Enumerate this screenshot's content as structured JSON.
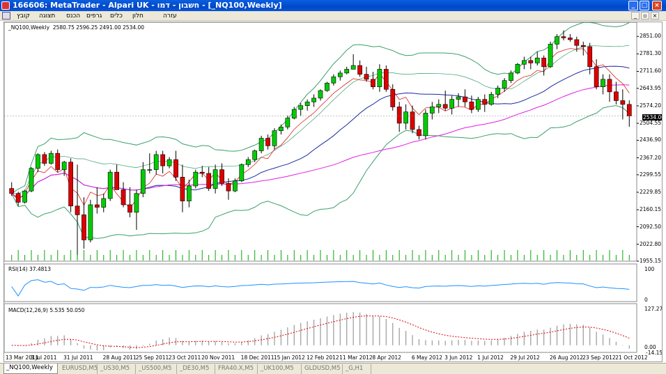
{
  "window": {
    "title": "166606: MetaTrader - Alpari UK - חשבון - דמו - [_NQ100,Weekly]"
  },
  "menu": [
    "קובץ",
    "תצוגה",
    "הכנס",
    "גרפים",
    "כלים",
    "חלון",
    "עזרה"
  ],
  "chart": {
    "info": "_NQ100,Weekly",
    "ohlc": "2580.75 2596.25 2491.00 2534.00",
    "current_price": "2534.00",
    "price_ticks": [
      "2851.00",
      "2781.30",
      "2711.60",
      "2643.95",
      "2574.20",
      "2504.55",
      "2436.90",
      "2367.20",
      "2299.55",
      "2229.85",
      "2160.15",
      "2092.50",
      "2022.80",
      "1955.15"
    ],
    "date_labels": [
      "13 Mar 2011",
      "3 Jul 2011",
      "31 Jul 2011",
      "28 Aug 2011",
      "25 Sep 2011",
      "23 Oct 2011",
      "20 Nov 2011",
      "18 Dec 2011",
      "15 Jan 2012",
      "12 Feb 2012",
      "11 Mar 2012",
      "8 Apr 2012",
      "6 May 2012",
      "3 Jun 2012",
      "1 Jul 2012",
      "29 Jul 2012",
      "26 Aug 2012",
      "23 Sep 2012",
      "21 Oct 2012"
    ],
    "rsi": {
      "label": "RSI(14) 37.4813",
      "scale_top": "100",
      "scale_bottom": "0"
    },
    "macd": {
      "label": "MACD(12,26,9) 5.535 50.050",
      "scale_top": "127.275",
      "scale_bottom": "0.00",
      "scale_neg": "-14.156"
    }
  },
  "chart_data": {
    "type": "candlestick",
    "bullish_color": "#00cc00",
    "bearish_color": "#dd0000",
    "candles": [
      [
        2245,
        2270,
        2215,
        2225
      ],
      [
        2225,
        2232,
        2175,
        2190
      ],
      [
        2190,
        2240,
        2185,
        2235
      ],
      [
        2235,
        2330,
        2230,
        2325
      ],
      [
        2325,
        2385,
        2310,
        2380
      ],
      [
        2380,
        2390,
        2335,
        2345
      ],
      [
        2345,
        2395,
        2340,
        2385
      ],
      [
        2385,
        2400,
        2310,
        2320
      ],
      [
        2320,
        2355,
        2295,
        2350
      ],
      [
        2350,
        2365,
        2150,
        2175
      ],
      [
        2175,
        2340,
        1960,
        2140
      ],
      [
        2140,
        2210,
        2005,
        2040
      ],
      [
        2040,
        2200,
        2030,
        2180
      ],
      [
        2180,
        2250,
        2145,
        2170
      ],
      [
        2170,
        2225,
        2150,
        2205
      ],
      [
        2205,
        2320,
        2195,
        2310
      ],
      [
        2310,
        2340,
        2240,
        2240
      ],
      [
        2240,
        2270,
        2170,
        2180
      ],
      [
        2180,
        2250,
        2130,
        2150
      ],
      [
        2150,
        2240,
        2080,
        2225
      ],
      [
        2225,
        2350,
        2210,
        2320
      ],
      [
        2320,
        2385,
        2305,
        2320
      ],
      [
        2320,
        2395,
        2300,
        2380
      ],
      [
        2380,
        2395,
        2305,
        2335
      ],
      [
        2335,
        2370,
        2325,
        2360
      ],
      [
        2360,
        2395,
        2275,
        2290
      ],
      [
        2290,
        2340,
        2150,
        2195
      ],
      [
        2195,
        2280,
        2170,
        2255
      ],
      [
        2255,
        2320,
        2245,
        2310
      ],
      [
        2310,
        2335,
        2290,
        2305
      ],
      [
        2305,
        2330,
        2235,
        2245
      ],
      [
        2245,
        2340,
        2225,
        2320
      ],
      [
        2320,
        2345,
        2255,
        2265
      ],
      [
        2265,
        2285,
        2200,
        2235
      ],
      [
        2235,
        2285,
        2230,
        2275
      ],
      [
        2275,
        2345,
        2270,
        2340
      ],
      [
        2340,
        2370,
        2330,
        2360
      ],
      [
        2360,
        2400,
        2350,
        2395
      ],
      [
        2395,
        2455,
        2385,
        2445
      ],
      [
        2445,
        2460,
        2400,
        2415
      ],
      [
        2415,
        2485,
        2400,
        2475
      ],
      [
        2475,
        2500,
        2460,
        2490
      ],
      [
        2490,
        2535,
        2480,
        2525
      ],
      [
        2525,
        2570,
        2520,
        2560
      ],
      [
        2560,
        2585,
        2535,
        2575
      ],
      [
        2575,
        2600,
        2555,
        2590
      ],
      [
        2590,
        2620,
        2570,
        2605
      ],
      [
        2605,
        2640,
        2595,
        2635
      ],
      [
        2635,
        2670,
        2630,
        2665
      ],
      [
        2665,
        2700,
        2655,
        2690
      ],
      [
        2690,
        2715,
        2675,
        2705
      ],
      [
        2705,
        2730,
        2700,
        2720
      ],
      [
        2720,
        2780,
        2720,
        2735
      ],
      [
        2735,
        2755,
        2690,
        2700
      ],
      [
        2700,
        2730,
        2670,
        2680
      ],
      [
        2680,
        2710,
        2640,
        2650
      ],
      [
        2650,
        2740,
        2630,
        2720
      ],
      [
        2720,
        2735,
        2630,
        2640
      ],
      [
        2640,
        2660,
        2555,
        2570
      ],
      [
        2570,
        2590,
        2470,
        2505
      ],
      [
        2505,
        2580,
        2480,
        2550
      ],
      [
        2550,
        2575,
        2465,
        2480
      ],
      [
        2480,
        2495,
        2440,
        2455
      ],
      [
        2455,
        2560,
        2440,
        2545
      ],
      [
        2545,
        2590,
        2520,
        2570
      ],
      [
        2570,
        2600,
        2545,
        2580
      ],
      [
        2580,
        2635,
        2555,
        2565
      ],
      [
        2565,
        2615,
        2540,
        2600
      ],
      [
        2600,
        2625,
        2570,
        2610
      ],
      [
        2610,
        2640,
        2570,
        2590
      ],
      [
        2590,
        2615,
        2545,
        2560
      ],
      [
        2560,
        2610,
        2550,
        2600
      ],
      [
        2600,
        2620,
        2550,
        2580
      ],
      [
        2580,
        2630,
        2575,
        2620
      ],
      [
        2620,
        2655,
        2605,
        2645
      ],
      [
        2645,
        2685,
        2630,
        2675
      ],
      [
        2675,
        2715,
        2665,
        2705
      ],
      [
        2705,
        2745,
        2700,
        2740
      ],
      [
        2740,
        2770,
        2720,
        2755
      ],
      [
        2755,
        2770,
        2720,
        2745
      ],
      [
        2745,
        2790,
        2735,
        2765
      ],
      [
        2765,
        2775,
        2695,
        2730
      ],
      [
        2730,
        2830,
        2725,
        2820
      ],
      [
        2820,
        2860,
        2800,
        2850
      ],
      [
        2850,
        2875,
        2835,
        2845
      ],
      [
        2845,
        2860,
        2830,
        2838
      ],
      [
        2838,
        2850,
        2790,
        2815
      ],
      [
        2815,
        2830,
        2775,
        2810
      ],
      [
        2810,
        2825,
        2700,
        2730
      ],
      [
        2730,
        2760,
        2640,
        2650
      ],
      [
        2650,
        2700,
        2620,
        2680
      ],
      [
        2680,
        2700,
        2590,
        2630
      ],
      [
        2630,
        2670,
        2580,
        2595
      ],
      [
        2595,
        2640,
        2520,
        2580
      ],
      [
        2580,
        2596,
        2491,
        2534
      ]
    ],
    "y_range": [
      1955.15,
      2885
    ],
    "rsi_value": 37.4813,
    "macd_value": 5.535,
    "macd_signal": 50.05
  }
}
